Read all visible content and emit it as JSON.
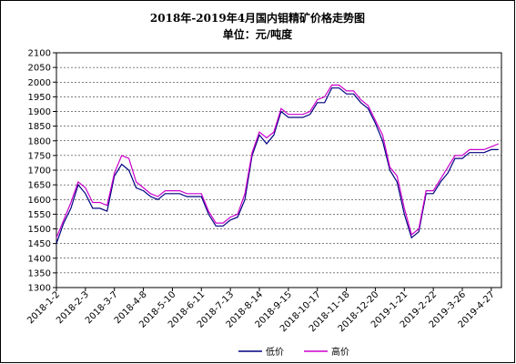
{
  "chart_data": {
    "type": "line",
    "title": "2018年-2019年4月国内钼精矿价格走势图",
    "subtitle": "单位：元/吨度",
    "categories": [
      "2018-1-2",
      null,
      null,
      null,
      "2018-2-3",
      null,
      null,
      null,
      "2018-3-7",
      null,
      null,
      null,
      "2018-4-8",
      null,
      null,
      null,
      "2018-5-10",
      null,
      null,
      null,
      "2018-6-11",
      null,
      null,
      null,
      "2018-7-13",
      null,
      null,
      null,
      "2018-8-14",
      null,
      null,
      null,
      "2018-9-15",
      null,
      null,
      null,
      "2018-10-17",
      null,
      null,
      null,
      "2018-11-18",
      null,
      null,
      null,
      "2018-12-20",
      null,
      null,
      null,
      "2019-1-21",
      null,
      null,
      null,
      "2019-2-22",
      null,
      null,
      null,
      "2019-3-26",
      null,
      null,
      null,
      "2019-4-27",
      null
    ],
    "series": [
      {
        "name": "低价",
        "color": "#000080",
        "values": [
          1450,
          1520,
          1570,
          1650,
          1620,
          1570,
          1570,
          1560,
          1680,
          1720,
          1700,
          1640,
          1630,
          1610,
          1600,
          1620,
          1620,
          1620,
          1610,
          1610,
          1610,
          1550,
          1510,
          1510,
          1530,
          1540,
          1600,
          1750,
          1820,
          1790,
          1820,
          1900,
          1880,
          1880,
          1880,
          1890,
          1930,
          1930,
          1980,
          1980,
          1960,
          1960,
          1930,
          1910,
          1860,
          1800,
          1700,
          1660,
          1550,
          1470,
          1490,
          1620,
          1620,
          1660,
          1690,
          1740,
          1740,
          1760,
          1760,
          1760,
          1770,
          1770
        ]
      },
      {
        "name": "高价",
        "color": "#cc00cc",
        "values": [
          1470,
          1530,
          1590,
          1660,
          1640,
          1590,
          1590,
          1580,
          1690,
          1750,
          1740,
          1660,
          1640,
          1620,
          1610,
          1630,
          1630,
          1630,
          1620,
          1620,
          1620,
          1560,
          1520,
          1520,
          1540,
          1550,
          1620,
          1760,
          1830,
          1810,
          1830,
          1910,
          1890,
          1890,
          1890,
          1900,
          1940,
          1950,
          1990,
          1990,
          1970,
          1970,
          1940,
          1920,
          1870,
          1820,
          1710,
          1680,
          1570,
          1480,
          1500,
          1630,
          1630,
          1670,
          1710,
          1750,
          1750,
          1770,
          1770,
          1770,
          1780,
          1790
        ]
      }
    ],
    "ylim": [
      1300,
      2100
    ],
    "yticks": [
      1300,
      1350,
      1400,
      1450,
      1500,
      1550,
      1600,
      1650,
      1700,
      1750,
      1800,
      1850,
      1900,
      1950,
      2000,
      2050,
      2100
    ],
    "grid": true,
    "legend": "bottom"
  }
}
